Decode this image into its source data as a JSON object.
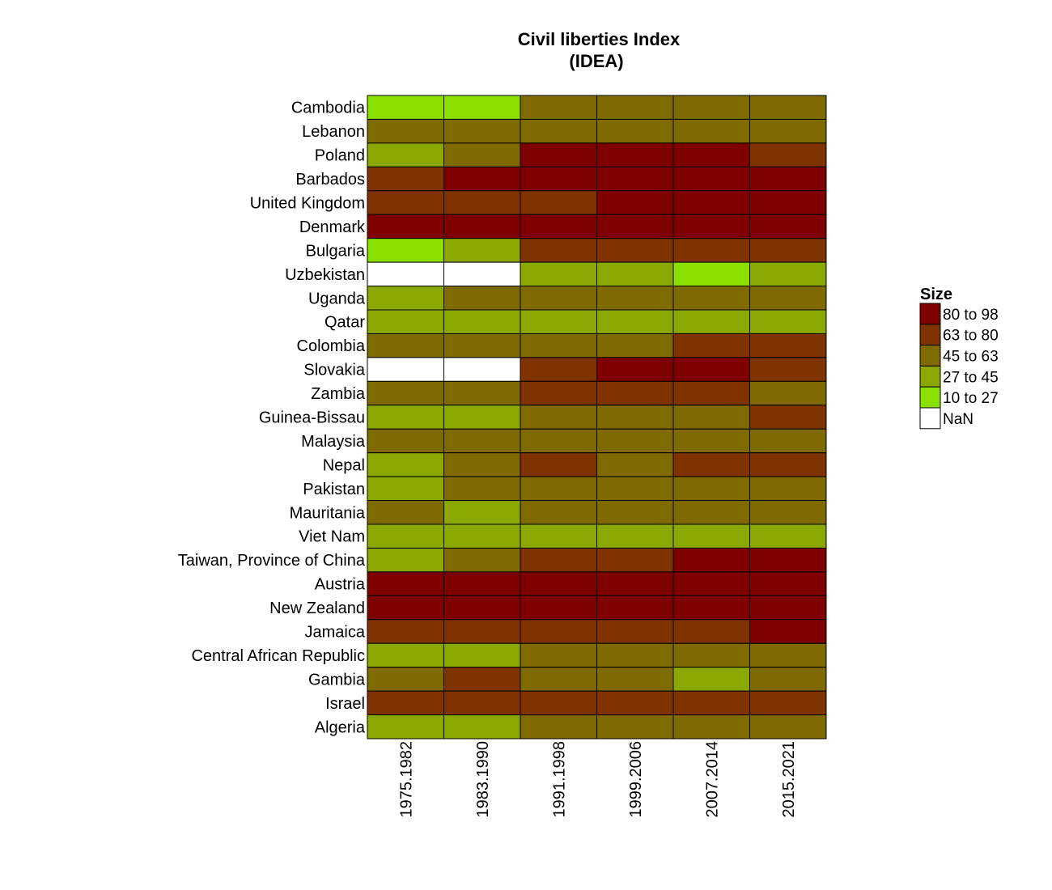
{
  "chart_data": {
    "type": "heatmap",
    "title": "Civil liberties Index",
    "subtitle": "(IDEA)",
    "columns": [
      "1975.1982",
      "1983.1990",
      "1991.1998",
      "1999.2006",
      "2007.2014",
      "2015.2021"
    ],
    "rows": [
      {
        "label": "Cambodia",
        "bins": [
          "10 to 27",
          "10 to 27",
          "45 to 63",
          "45 to 63",
          "45 to 63",
          "45 to 63"
        ]
      },
      {
        "label": "Lebanon",
        "bins": [
          "45 to 63",
          "45 to 63",
          "45 to 63",
          "45 to 63",
          "45 to 63",
          "45 to 63"
        ]
      },
      {
        "label": "Poland",
        "bins": [
          "27 to 45",
          "45 to 63",
          "80 to 98",
          "80 to 98",
          "80 to 98",
          "63 to 80"
        ]
      },
      {
        "label": "Barbados",
        "bins": [
          "63 to 80",
          "80 to 98",
          "80 to 98",
          "80 to 98",
          "80 to 98",
          "80 to 98"
        ]
      },
      {
        "label": "United Kingdom",
        "bins": [
          "63 to 80",
          "63 to 80",
          "63 to 80",
          "80 to 98",
          "80 to 98",
          "80 to 98"
        ]
      },
      {
        "label": "Denmark",
        "bins": [
          "80 to 98",
          "80 to 98",
          "80 to 98",
          "80 to 98",
          "80 to 98",
          "80 to 98"
        ]
      },
      {
        "label": "Bulgaria",
        "bins": [
          "10 to 27",
          "27 to 45",
          "63 to 80",
          "63 to 80",
          "63 to 80",
          "63 to 80"
        ]
      },
      {
        "label": "Uzbekistan",
        "bins": [
          "NaN",
          "NaN",
          "27 to 45",
          "27 to 45",
          "10 to 27",
          "27 to 45"
        ]
      },
      {
        "label": "Uganda",
        "bins": [
          "27 to 45",
          "45 to 63",
          "45 to 63",
          "45 to 63",
          "45 to 63",
          "45 to 63"
        ]
      },
      {
        "label": "Qatar",
        "bins": [
          "27 to 45",
          "27 to 45",
          "27 to 45",
          "27 to 45",
          "27 to 45",
          "27 to 45"
        ]
      },
      {
        "label": "Colombia",
        "bins": [
          "45 to 63",
          "45 to 63",
          "45 to 63",
          "45 to 63",
          "63 to 80",
          "63 to 80"
        ]
      },
      {
        "label": "Slovakia",
        "bins": [
          "NaN",
          "NaN",
          "63 to 80",
          "80 to 98",
          "80 to 98",
          "63 to 80"
        ]
      },
      {
        "label": "Zambia",
        "bins": [
          "45 to 63",
          "45 to 63",
          "63 to 80",
          "63 to 80",
          "63 to 80",
          "45 to 63"
        ]
      },
      {
        "label": "Guinea-Bissau",
        "bins": [
          "27 to 45",
          "27 to 45",
          "45 to 63",
          "45 to 63",
          "45 to 63",
          "63 to 80"
        ]
      },
      {
        "label": "Malaysia",
        "bins": [
          "45 to 63",
          "45 to 63",
          "45 to 63",
          "45 to 63",
          "45 to 63",
          "45 to 63"
        ]
      },
      {
        "label": "Nepal",
        "bins": [
          "27 to 45",
          "45 to 63",
          "63 to 80",
          "45 to 63",
          "63 to 80",
          "63 to 80"
        ]
      },
      {
        "label": "Pakistan",
        "bins": [
          "27 to 45",
          "45 to 63",
          "45 to 63",
          "45 to 63",
          "45 to 63",
          "45 to 63"
        ]
      },
      {
        "label": "Mauritania",
        "bins": [
          "45 to 63",
          "27 to 45",
          "45 to 63",
          "45 to 63",
          "45 to 63",
          "45 to 63"
        ]
      },
      {
        "label": "Viet Nam",
        "bins": [
          "27 to 45",
          "27 to 45",
          "27 to 45",
          "27 to 45",
          "27 to 45",
          "27 to 45"
        ]
      },
      {
        "label": "Taiwan, Province of China",
        "bins": [
          "27 to 45",
          "45 to 63",
          "63 to 80",
          "63 to 80",
          "80 to 98",
          "80 to 98"
        ]
      },
      {
        "label": "Austria",
        "bins": [
          "80 to 98",
          "80 to 98",
          "80 to 98",
          "80 to 98",
          "80 to 98",
          "80 to 98"
        ]
      },
      {
        "label": "New Zealand",
        "bins": [
          "80 to 98",
          "80 to 98",
          "80 to 98",
          "80 to 98",
          "80 to 98",
          "80 to 98"
        ]
      },
      {
        "label": "Jamaica",
        "bins": [
          "63 to 80",
          "63 to 80",
          "63 to 80",
          "63 to 80",
          "63 to 80",
          "80 to 98"
        ]
      },
      {
        "label": "Central African Republic",
        "bins": [
          "27 to 45",
          "27 to 45",
          "45 to 63",
          "45 to 63",
          "45 to 63",
          "45 to 63"
        ]
      },
      {
        "label": "Gambia",
        "bins": [
          "45 to 63",
          "63 to 80",
          "45 to 63",
          "45 to 63",
          "27 to 45",
          "45 to 63"
        ]
      },
      {
        "label": "Israel",
        "bins": [
          "63 to 80",
          "63 to 80",
          "63 to 80",
          "63 to 80",
          "63 to 80",
          "63 to 80"
        ]
      },
      {
        "label": "Algeria",
        "bins": [
          "27 to 45",
          "27 to 45",
          "45 to 63",
          "45 to 63",
          "45 to 63",
          "45 to 63"
        ]
      }
    ],
    "legend": {
      "title": "Size",
      "position": "right",
      "items": [
        {
          "label": "80 to 98",
          "color": "#7f0000"
        },
        {
          "label": "63 to 80",
          "color": "#7f3300"
        },
        {
          "label": "45 to 63",
          "color": "#7f6a00"
        },
        {
          "label": "27 to 45",
          "color": "#8aa800"
        },
        {
          "label": "10 to 27",
          "color": "#8ce000"
        },
        {
          "label": "NaN",
          "color": "#ffffff"
        }
      ]
    },
    "grid": false
  }
}
